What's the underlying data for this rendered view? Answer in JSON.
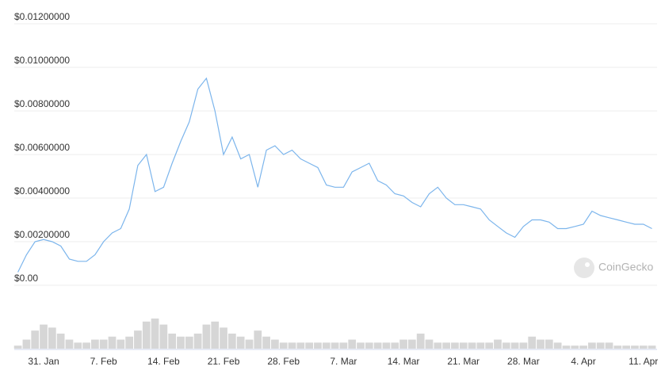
{
  "chart_data": {
    "type": "line",
    "categories": [
      null,
      null,
      null,
      "31. Jan",
      null,
      null,
      null,
      null,
      null,
      null,
      "7. Feb",
      null,
      null,
      null,
      null,
      null,
      null,
      "14. Feb",
      null,
      null,
      null,
      null,
      null,
      null,
      "21. Feb",
      null,
      null,
      null,
      null,
      null,
      null,
      "28. Feb",
      null,
      null,
      null,
      null,
      null,
      null,
      "7. Mar",
      null,
      null,
      null,
      null,
      null,
      null,
      "14. Mar",
      null,
      null,
      null,
      null,
      null,
      null,
      "21. Mar",
      null,
      null,
      null,
      null,
      null,
      null,
      "28. Mar",
      null,
      null,
      null,
      null,
      null,
      null,
      "4. Apr",
      null,
      null,
      null,
      null,
      null,
      null,
      "11. Apr",
      null
    ],
    "values": [
      0.0006,
      0.0014,
      0.002,
      0.0021,
      0.002,
      0.0018,
      0.0012,
      0.0011,
      0.0011,
      0.0014,
      0.002,
      0.0024,
      0.0026,
      0.0035,
      0.0055,
      0.006,
      0.0043,
      0.0045,
      0.0056,
      0.0066,
      0.0075,
      0.009,
      0.0095,
      0.008,
      0.006,
      0.0068,
      0.0058,
      0.006,
      0.0045,
      0.0062,
      0.0064,
      0.006,
      0.0062,
      0.0058,
      0.0056,
      0.0054,
      0.0046,
      0.0045,
      0.0045,
      0.0052,
      0.0054,
      0.0056,
      0.0048,
      0.0046,
      0.0042,
      0.0041,
      0.0038,
      0.0036,
      0.0042,
      0.0045,
      0.004,
      0.0037,
      0.0037,
      0.0036,
      0.0035,
      0.003,
      0.0027,
      0.0024,
      0.0022,
      0.0027,
      0.003,
      0.003,
      0.0029,
      0.0026,
      0.0026,
      0.0027,
      0.0028,
      0.0034,
      0.0032,
      0.0031,
      0.003,
      0.0029,
      0.0028,
      0.0028,
      0.0026
    ],
    "color": "#7cb5ec",
    "ylim": [
      0,
      0.012
    ],
    "yticks": [
      {
        "value": 0,
        "label": "$0.00"
      },
      {
        "value": 0.002,
        "label": "$0.00200000"
      },
      {
        "value": 0.004,
        "label": "$0.00400000"
      },
      {
        "value": 0.006,
        "label": "$0.00600000"
      },
      {
        "value": 0.008,
        "label": "$0.00800000"
      },
      {
        "value": 0.01,
        "label": "$0.01000000"
      },
      {
        "value": 0.012,
        "label": "$0.01200000"
      }
    ],
    "grid": true,
    "volume": {
      "type": "bar",
      "color": "#d6d6d6",
      "values": [
        1,
        3,
        6,
        8,
        7,
        5,
        3,
        2,
        2,
        3,
        3,
        4,
        3,
        4,
        6,
        9,
        10,
        8,
        5,
        4,
        4,
        5,
        8,
        9,
        7,
        5,
        4,
        3,
        6,
        4,
        3,
        2,
        2,
        2,
        2,
        2,
        2,
        2,
        2,
        3,
        2,
        2,
        2,
        2,
        2,
        3,
        3,
        5,
        3,
        2,
        2,
        2,
        2,
        2,
        2,
        2,
        3,
        2,
        2,
        2,
        4,
        3,
        3,
        2,
        1,
        1,
        1,
        2,
        2,
        2,
        1,
        1,
        1,
        1,
        1
      ]
    },
    "watermark": "CoinGecko"
  }
}
